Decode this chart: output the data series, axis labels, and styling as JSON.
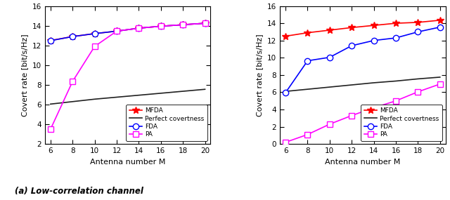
{
  "M": [
    6,
    8,
    10,
    12,
    14,
    16,
    18,
    20
  ],
  "left": {
    "MFDA": [
      12.5,
      12.9,
      13.2,
      13.45,
      13.75,
      13.95,
      14.1,
      14.25
    ],
    "Perfect_covertness": [
      6.05,
      6.3,
      6.55,
      6.75,
      6.95,
      7.15,
      7.35,
      7.55
    ],
    "FDA": [
      12.48,
      12.9,
      13.2,
      13.45,
      13.75,
      13.95,
      14.1,
      14.25
    ],
    "PA": [
      3.5,
      8.35,
      11.9,
      13.45,
      13.75,
      13.95,
      14.1,
      14.25
    ]
  },
  "right": {
    "MFDA": [
      12.5,
      12.9,
      13.2,
      13.5,
      13.75,
      14.0,
      14.1,
      14.35
    ],
    "Perfect_covertness": [
      6.1,
      6.35,
      6.6,
      6.85,
      7.1,
      7.3,
      7.55,
      7.75
    ],
    "FDA": [
      5.95,
      9.65,
      10.05,
      11.4,
      12.0,
      12.3,
      13.0,
      13.55
    ],
    "PA": [
      0.2,
      1.1,
      2.3,
      3.3,
      4.2,
      5.0,
      6.05,
      6.95
    ]
  },
  "ylim_left": [
    2,
    16
  ],
  "ylim_right": [
    0,
    16
  ],
  "yticks_left": [
    2,
    4,
    6,
    8,
    10,
    12,
    14,
    16
  ],
  "yticks_right": [
    0,
    2,
    4,
    6,
    8,
    10,
    12,
    14,
    16
  ],
  "xticks": [
    6,
    8,
    10,
    12,
    14,
    16,
    18,
    20
  ],
  "xlabel": "Antenna number M",
  "ylabel": "Covert rate [bit/s/Hz]",
  "subtitle": "(a) Low-correlation channel",
  "colors": {
    "MFDA": "#ff0000",
    "Perfect_covertness": "#202020",
    "FDA": "#0000ff",
    "PA": "#ff00ff"
  },
  "legend_labels": [
    "MFDA",
    "Perfect covertness",
    "FDA",
    "PA"
  ],
  "legend_keys": [
    "MFDA",
    "Perfect_covertness",
    "FDA",
    "PA"
  ],
  "marker_sizes": {
    "MFDA": 7,
    "Perfect_covertness": 0,
    "FDA": 6,
    "PA": 6
  }
}
